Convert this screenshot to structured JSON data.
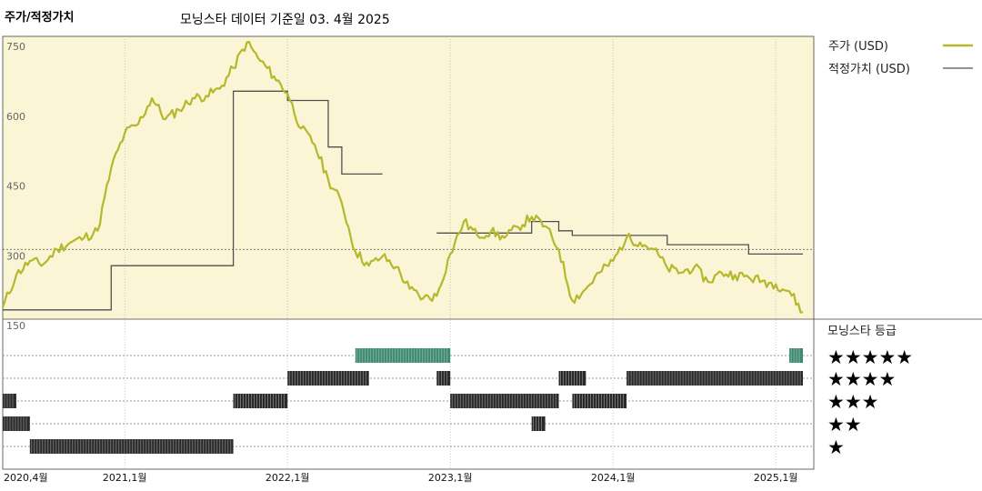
{
  "header": {
    "chart_label": "주가/적정가치",
    "subtitle": "모닝스타 데이터 기준일 03. 4월 2025"
  },
  "legend": {
    "price_label": "주가 (USD)",
    "fair_label": "적정가치 (USD)",
    "rating_title": "모닝스타 등급",
    "stars": [
      "★★★★★",
      "★★★★",
      "★★★",
      "★★",
      "★"
    ]
  },
  "colors": {
    "price": "#b5b82c",
    "fair": "#505050",
    "upper_bg": "#f9f5d5",
    "five_star": "#3d8a70",
    "rating_bar": "#2a2a2a"
  },
  "chart_data": {
    "type": "line",
    "x_ticks": [
      "2020,4월",
      "2021,1월",
      "2022,1월",
      "2023,1월",
      "2024,1월",
      "2025,1월"
    ],
    "y_ticks": [
      "750",
      "600",
      "450",
      "300",
      "150"
    ],
    "ylim": [
      150,
      750
    ],
    "series": [
      {
        "name": "주가 (USD)",
        "points": [
          [
            "2020-04",
            175
          ],
          [
            "2020-05",
            245
          ],
          [
            "2020-06",
            275
          ],
          [
            "2020-07",
            268
          ],
          [
            "2020-08",
            300
          ],
          [
            "2020-09",
            315
          ],
          [
            "2020-10",
            325
          ],
          [
            "2020-11",
            340
          ],
          [
            "2020-12",
            475
          ],
          [
            "2021-01",
            550
          ],
          [
            "2021-02",
            570
          ],
          [
            "2021-03",
            625
          ],
          [
            "2021-04",
            580
          ],
          [
            "2021-05",
            600
          ],
          [
            "2021-06",
            625
          ],
          [
            "2021-07",
            630
          ],
          [
            "2021-08",
            645
          ],
          [
            "2021-09",
            690
          ],
          [
            "2021-10",
            745
          ],
          [
            "2021-11",
            705
          ],
          [
            "2021-12",
            672
          ],
          [
            "2022-01",
            635
          ],
          [
            "2022-02",
            560
          ],
          [
            "2022-03",
            525
          ],
          [
            "2022-04",
            450
          ],
          [
            "2022-05",
            400
          ],
          [
            "2022-06",
            295
          ],
          [
            "2022-07",
            265
          ],
          [
            "2022-08",
            285
          ],
          [
            "2022-09",
            262
          ],
          [
            "2022-10",
            215
          ],
          [
            "2022-11",
            195
          ],
          [
            "2022-12",
            200
          ],
          [
            "2023-01",
            290
          ],
          [
            "2023-02",
            360
          ],
          [
            "2023-03",
            330
          ],
          [
            "2023-04",
            338
          ],
          [
            "2023-05",
            325
          ],
          [
            "2023-06",
            348
          ],
          [
            "2023-07",
            370
          ],
          [
            "2023-08",
            350
          ],
          [
            "2023-09",
            300
          ],
          [
            "2023-10",
            190
          ],
          [
            "2023-11",
            215
          ],
          [
            "2023-12",
            250
          ],
          [
            "2024-01",
            275
          ],
          [
            "2024-02",
            325
          ],
          [
            "2024-03",
            315
          ],
          [
            "2024-04",
            300
          ],
          [
            "2024-05",
            260
          ],
          [
            "2024-06",
            250
          ],
          [
            "2024-07",
            262
          ],
          [
            "2024-08",
            230
          ],
          [
            "2024-09",
            250
          ],
          [
            "2024-10",
            245
          ],
          [
            "2024-11",
            240
          ],
          [
            "2024-12",
            232
          ],
          [
            "2025-01",
            225
          ],
          [
            "2025-02",
            210
          ],
          [
            "2025-03",
            165
          ]
        ]
      },
      {
        "name": "적정가치 (USD)",
        "steps": [
          [
            "2020-04",
            "2020-12",
            170
          ],
          [
            "2020-12",
            "2021-09",
            265
          ],
          [
            "2021-09",
            "2022-01",
            640
          ],
          [
            "2022-01",
            "2022-04",
            620
          ],
          [
            "2022-04",
            "2022-05",
            520
          ],
          [
            "2022-05",
            "2022-08",
            462
          ],
          [
            "2022-12",
            "2023-07",
            335
          ],
          [
            "2023-07",
            "2023-09",
            360
          ],
          [
            "2023-09",
            "2023-10",
            340
          ],
          [
            "2023-10",
            "2024-05",
            330
          ],
          [
            "2024-05",
            "2024-11",
            310
          ],
          [
            "2024-11",
            "2025-03",
            290
          ]
        ]
      }
    ],
    "ratings": [
      {
        "stars": 5,
        "spans": [
          [
            "2022-06",
            "2023-01"
          ],
          [
            "2025-02",
            "2025-03"
          ]
        ]
      },
      {
        "stars": 4,
        "spans": [
          [
            "2022-01",
            "2022-07"
          ],
          [
            "2022-12",
            "2023-01"
          ],
          [
            "2023-09",
            "2023-11"
          ],
          [
            "2024-02",
            "2025-03"
          ]
        ]
      },
      {
        "stars": 3,
        "spans": [
          [
            "2020-04",
            "2020-05"
          ],
          [
            "2021-09",
            "2022-01"
          ],
          [
            "2023-01",
            "2023-09"
          ],
          [
            "2023-10",
            "2024-02"
          ]
        ]
      },
      {
        "stars": 2,
        "spans": [
          [
            "2020-04",
            "2020-06"
          ],
          [
            "2023-07",
            "2023-08"
          ]
        ]
      },
      {
        "stars": 1,
        "spans": [
          [
            "2020-06",
            "2021-09"
          ]
        ]
      }
    ]
  }
}
